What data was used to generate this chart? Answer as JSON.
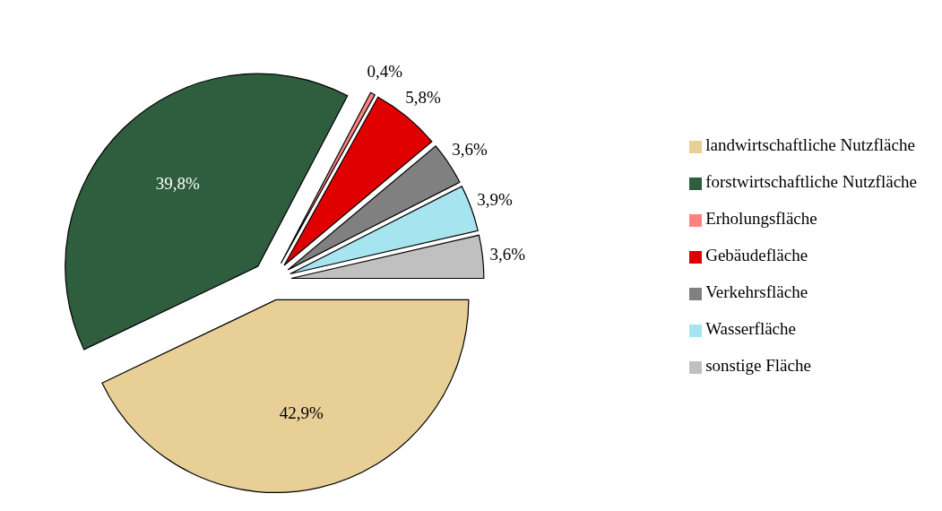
{
  "chart_data": {
    "type": "pie",
    "categories": [
      "landwirtschaftliche Nutzfläche",
      "forstwirtschaftliche Nutzfläche",
      "Erholungsfläche",
      "Gebäudefläche",
      "Verkehrsfläche",
      "Wasserfläche",
      "sonstige Fläche"
    ],
    "values": [
      42.9,
      39.8,
      0.4,
      5.8,
      3.6,
      3.9,
      3.6
    ],
    "value_labels": [
      "42,9%",
      "39,8%",
      "0,4%",
      "5,8%",
      "3,6%",
      "3,9%",
      "3,6%"
    ],
    "colors": [
      "#e8cf96",
      "#2f5e3e",
      "#ff8080",
      "#e00000",
      "#808080",
      "#a6e4f0",
      "#c0c0c0"
    ],
    "legend": "right"
  }
}
